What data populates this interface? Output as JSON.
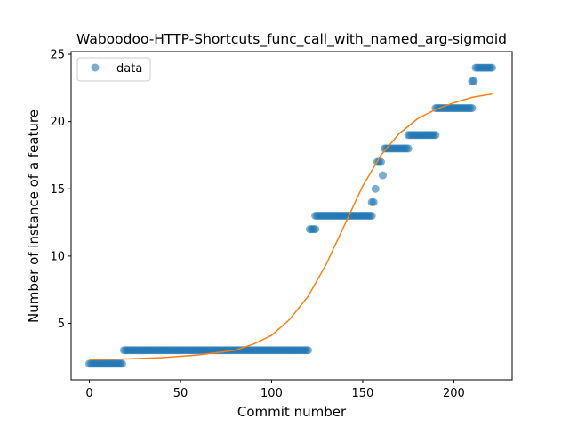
{
  "chart_data": {
    "type": "scatter",
    "title": "Waboodoo-HTTP-Shortcuts_func_call_with_named_arg-sigmoid",
    "xlabel": "Commit number",
    "ylabel": "Number of instance of a feature",
    "xlim": [
      -10,
      232
    ],
    "ylim": [
      0.8,
      25.2
    ],
    "xticks": [
      0,
      50,
      100,
      150,
      200
    ],
    "yticks": [
      5,
      10,
      15,
      20,
      25
    ],
    "legend": {
      "placement": "top-left",
      "entries": [
        "data"
      ]
    },
    "colors": {
      "points": "#1f77b4",
      "fit": "#ff7f0e"
    },
    "series": [
      {
        "name": "data",
        "kind": "scatter",
        "segments": [
          {
            "x_start": 0,
            "x_end": 18,
            "y": 2
          },
          {
            "x_start": 19,
            "x_end": 120,
            "y": 3
          },
          {
            "x_start": 121,
            "x_end": 124,
            "y": 12
          },
          {
            "x_start": 124,
            "x_end": 155,
            "y": 13
          },
          {
            "x_start": 155,
            "x_end": 156,
            "y": 14
          },
          {
            "x_start": 157,
            "x_end": 157,
            "y": 15
          },
          {
            "x_start": 158,
            "x_end": 160,
            "y": 17
          },
          {
            "x_start": 161,
            "x_end": 161,
            "y": 16
          },
          {
            "x_start": 162,
            "x_end": 175,
            "y": 18
          },
          {
            "x_start": 175,
            "x_end": 190,
            "y": 19
          },
          {
            "x_start": 190,
            "x_end": 210,
            "y": 21
          },
          {
            "x_start": 210,
            "x_end": 211,
            "y": 23
          },
          {
            "x_start": 212,
            "x_end": 221,
            "y": 24
          }
        ]
      },
      {
        "kind": "line",
        "x": [
          0,
          20,
          40,
          60,
          80,
          90,
          100,
          110,
          120,
          130,
          140,
          150,
          160,
          170,
          180,
          190,
          200,
          210,
          221
        ],
        "y": [
          2.3,
          2.35,
          2.45,
          2.65,
          3.0,
          3.45,
          4.1,
          5.3,
          7.0,
          9.4,
          12.3,
          15.2,
          17.5,
          19.1,
          20.2,
          20.9,
          21.4,
          21.8,
          22.05
        ]
      }
    ]
  }
}
